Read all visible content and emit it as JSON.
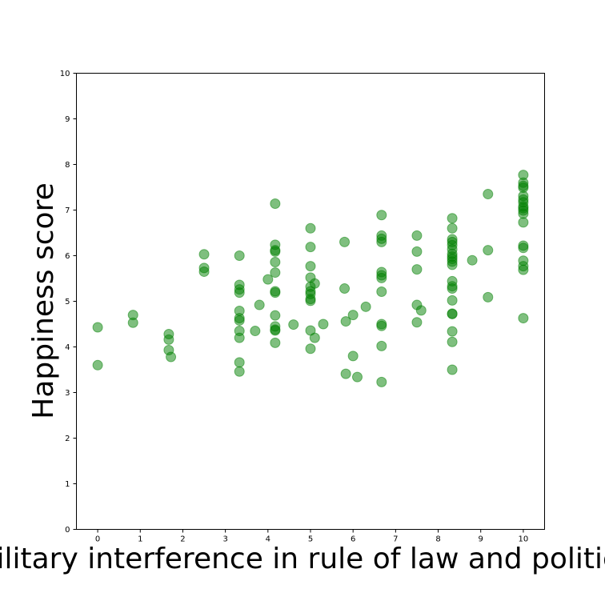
{
  "chart_data": {
    "type": "scatter",
    "title": "",
    "xlabel": "Military interference in rule of law and politics",
    "ylabel": "Happiness score",
    "xlim": [
      -0.5,
      10.5
    ],
    "ylim": [
      0,
      10
    ],
    "xticks": [
      "0",
      "1",
      "2",
      "3",
      "4",
      "5",
      "6",
      "7",
      "8",
      "9",
      "10"
    ],
    "yticks": [
      "0",
      "1",
      "2",
      "3",
      "4",
      "5",
      "6",
      "7",
      "8",
      "9",
      "10"
    ],
    "grid": false,
    "legend": "none",
    "color": "#008000",
    "points": [
      [
        0,
        4.43
      ],
      [
        0,
        3.6
      ],
      [
        0.83,
        4.7
      ],
      [
        0.83,
        4.53
      ],
      [
        1.67,
        4.28
      ],
      [
        1.67,
        4.16
      ],
      [
        1.67,
        3.93
      ],
      [
        1.72,
        3.78
      ],
      [
        2.5,
        6.03
      ],
      [
        2.5,
        5.73
      ],
      [
        2.5,
        5.65
      ],
      [
        3.33,
        6.0
      ],
      [
        3.33,
        5.36
      ],
      [
        3.33,
        5.26
      ],
      [
        3.33,
        5.19
      ],
      [
        3.33,
        4.79
      ],
      [
        3.33,
        4.63
      ],
      [
        3.33,
        4.58
      ],
      [
        3.33,
        4.35
      ],
      [
        3.33,
        4.2
      ],
      [
        3.33,
        3.66
      ],
      [
        3.33,
        3.46
      ],
      [
        3.7,
        4.35
      ],
      [
        3.8,
        4.92
      ],
      [
        4.0,
        5.48
      ],
      [
        4.17,
        7.14
      ],
      [
        4.17,
        6.24
      ],
      [
        4.17,
        6.12
      ],
      [
        4.17,
        6.09
      ],
      [
        4.17,
        5.86
      ],
      [
        4.17,
        5.63
      ],
      [
        4.17,
        5.22
      ],
      [
        4.17,
        5.19
      ],
      [
        4.17,
        4.69
      ],
      [
        4.17,
        4.45
      ],
      [
        4.17,
        4.38
      ],
      [
        4.17,
        4.36
      ],
      [
        4.17,
        4.09
      ],
      [
        4.6,
        4.49
      ],
      [
        5.0,
        6.6
      ],
      [
        5.0,
        6.19
      ],
      [
        5.0,
        5.77
      ],
      [
        5.0,
        5.52
      ],
      [
        5.0,
        5.32
      ],
      [
        5.0,
        5.22
      ],
      [
        5.0,
        5.16
      ],
      [
        5.0,
        5.05
      ],
      [
        5.0,
        5.01
      ],
      [
        5.0,
        4.36
      ],
      [
        5.0,
        3.96
      ],
      [
        5.1,
        5.39
      ],
      [
        5.1,
        4.2
      ],
      [
        5.3,
        4.5
      ],
      [
        5.8,
        6.3
      ],
      [
        5.8,
        5.28
      ],
      [
        5.83,
        4.56
      ],
      [
        5.83,
        3.41
      ],
      [
        6.0,
        4.7
      ],
      [
        6.0,
        3.8
      ],
      [
        6.1,
        3.34
      ],
      [
        6.3,
        4.88
      ],
      [
        6.67,
        6.89
      ],
      [
        6.67,
        6.44
      ],
      [
        6.67,
        6.37
      ],
      [
        6.67,
        6.3
      ],
      [
        6.67,
        5.64
      ],
      [
        6.67,
        5.57
      ],
      [
        6.67,
        5.51
      ],
      [
        6.67,
        5.21
      ],
      [
        6.67,
        4.5
      ],
      [
        6.67,
        4.46
      ],
      [
        6.67,
        4.02
      ],
      [
        6.67,
        3.23
      ],
      [
        7.5,
        6.44
      ],
      [
        7.5,
        6.09
      ],
      [
        7.5,
        5.7
      ],
      [
        7.5,
        4.92
      ],
      [
        7.5,
        4.54
      ],
      [
        7.6,
        4.8
      ],
      [
        8.33,
        6.82
      ],
      [
        8.33,
        6.6
      ],
      [
        8.33,
        6.36
      ],
      [
        8.33,
        6.3
      ],
      [
        8.33,
        6.23
      ],
      [
        8.33,
        6.14
      ],
      [
        8.33,
        6.04
      ],
      [
        8.33,
        5.98
      ],
      [
        8.33,
        5.93
      ],
      [
        8.33,
        5.87
      ],
      [
        8.33,
        5.8
      ],
      [
        8.33,
        5.44
      ],
      [
        8.33,
        5.33
      ],
      [
        8.33,
        5.28
      ],
      [
        8.33,
        5.02
      ],
      [
        8.33,
        4.73
      ],
      [
        8.33,
        4.72
      ],
      [
        8.33,
        4.34
      ],
      [
        8.33,
        4.11
      ],
      [
        8.33,
        3.5
      ],
      [
        8.8,
        5.9
      ],
      [
        9.17,
        7.35
      ],
      [
        9.17,
        6.12
      ],
      [
        9.17,
        5.09
      ],
      [
        10.0,
        7.77
      ],
      [
        10.0,
        7.6
      ],
      [
        10.0,
        7.53
      ],
      [
        10.0,
        7.49
      ],
      [
        10.0,
        7.31
      ],
      [
        10.0,
        7.23
      ],
      [
        10.0,
        7.17
      ],
      [
        10.0,
        7.08
      ],
      [
        10.0,
        7.04
      ],
      [
        10.0,
        6.99
      ],
      [
        10.0,
        6.92
      ],
      [
        10.0,
        6.73
      ],
      [
        10.0,
        6.22
      ],
      [
        10.0,
        6.17
      ],
      [
        10.0,
        5.89
      ],
      [
        10.0,
        5.77
      ],
      [
        10.0,
        5.69
      ],
      [
        10.0,
        4.63
      ]
    ]
  }
}
